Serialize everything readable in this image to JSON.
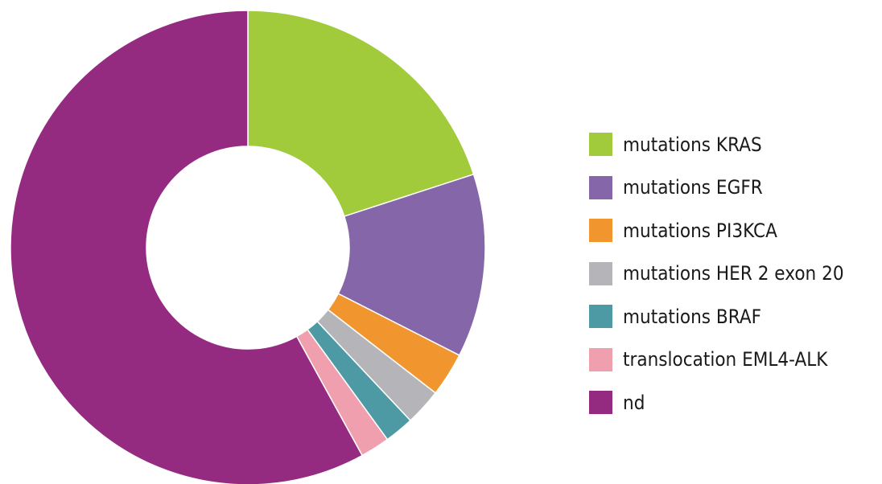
{
  "chart_data": {
    "type": "pie",
    "donut": true,
    "legend_position": "right",
    "title": "",
    "series": [
      {
        "label": "mutations KRAS",
        "value": 20,
        "color": "#a2cb3c"
      },
      {
        "label": "mutations EGFR",
        "value": 12.5,
        "color": "#8466a9"
      },
      {
        "label": "mutations PI3KCA",
        "value": 3,
        "color": "#f1962e"
      },
      {
        "label": "mutations HER 2 exon 20",
        "value": 2.5,
        "color": "#b5b5b9"
      },
      {
        "label": "mutations BRAF",
        "value": 2,
        "color": "#4d9aa4"
      },
      {
        "label": "translocation EML4-ALK",
        "value": 2,
        "color": "#f09fae"
      },
      {
        "label": "nd",
        "value": 58,
        "color": "#952b80"
      }
    ]
  }
}
